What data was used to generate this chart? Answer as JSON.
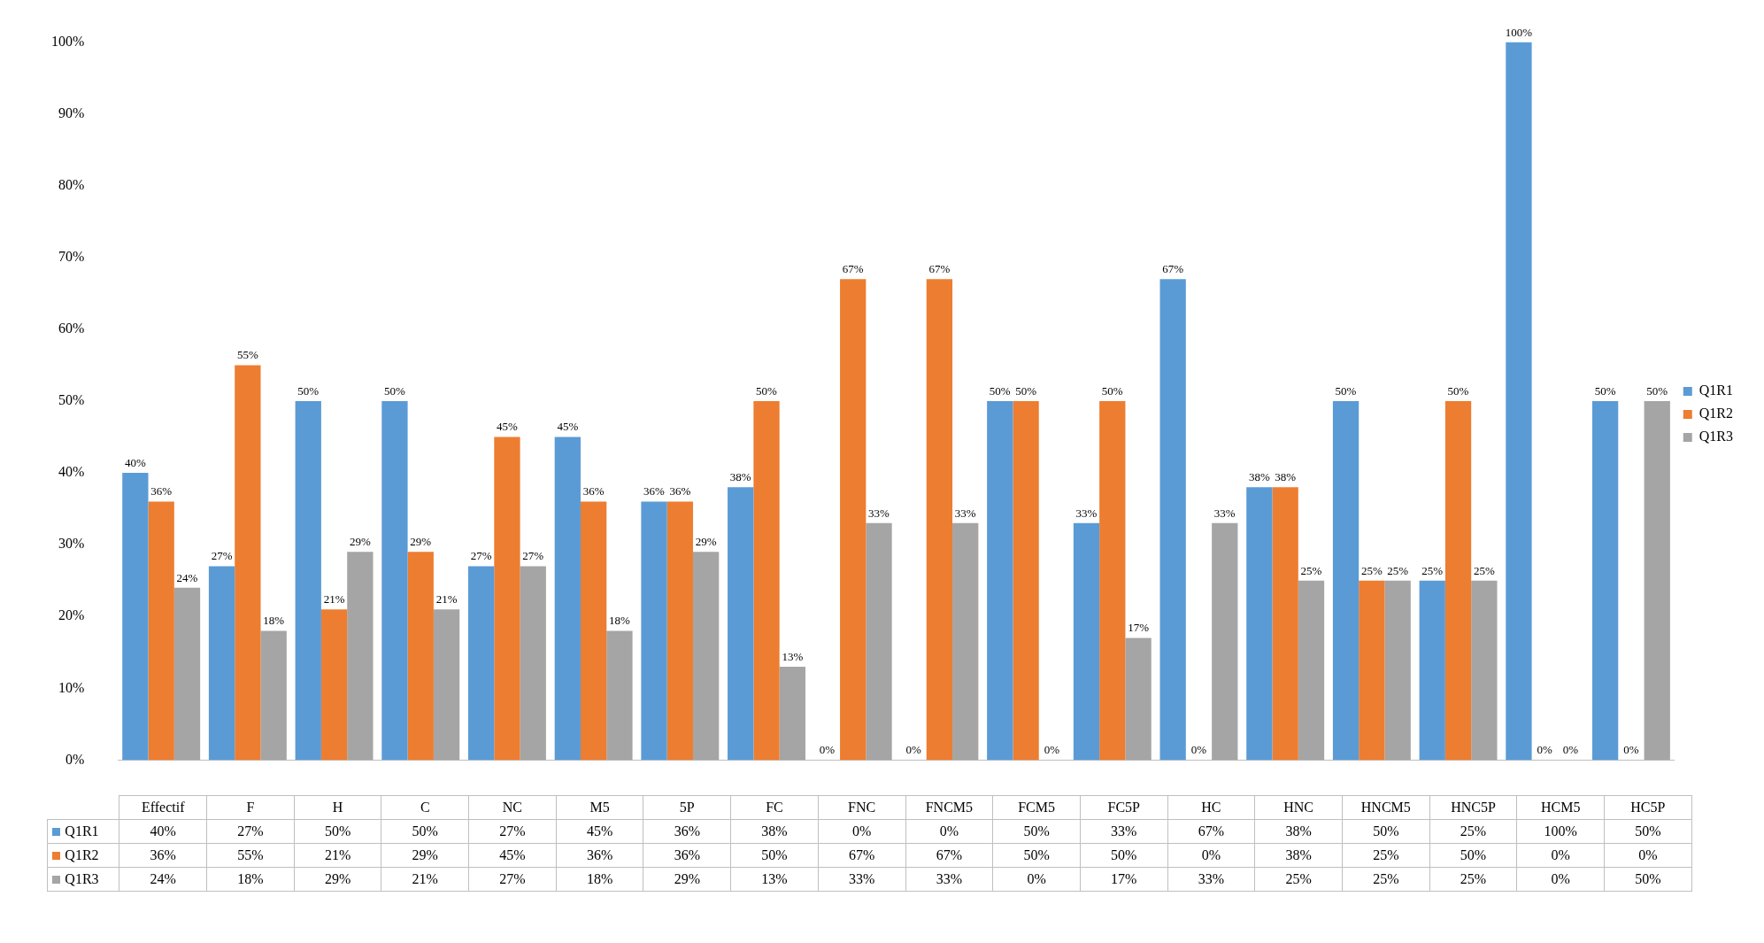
{
  "chart_data": {
    "type": "bar",
    "categories": [
      "Effectif",
      "F",
      "H",
      "C",
      "NC",
      "M5",
      "5P",
      "FC",
      "FNC",
      "FNCM5",
      "FCM5",
      "FC5P",
      "HC",
      "HNC",
      "HNCM5",
      "HNC5P",
      "HCM5",
      "HC5P"
    ],
    "series": [
      {
        "name": "Q1R1",
        "color": "#5b9bd5",
        "values": [
          40,
          27,
          50,
          50,
          27,
          45,
          36,
          38,
          0,
          0,
          50,
          33,
          67,
          38,
          50,
          25,
          100,
          50
        ],
        "value_labels": [
          "40%",
          "27%",
          "50%",
          "50%",
          "27%",
          "45%",
          "36%",
          "38%",
          "0%",
          "0%",
          "50%",
          "33%",
          "67%",
          "38%",
          "50%",
          "25%",
          "100%",
          "50%"
        ]
      },
      {
        "name": "Q1R2",
        "color": "#ed7d31",
        "values": [
          36,
          55,
          21,
          29,
          45,
          36,
          36,
          50,
          67,
          67,
          50,
          50,
          0,
          38,
          25,
          50,
          0,
          0
        ],
        "value_labels": [
          "36%",
          "55%",
          "21%",
          "29%",
          "45%",
          "36%",
          "36%",
          "50%",
          "67%",
          "67%",
          "50%",
          "50%",
          "0%",
          "38%",
          "25%",
          "50%",
          "0%",
          "0%"
        ]
      },
      {
        "name": "Q1R3",
        "color": "#a5a5a5",
        "values": [
          24,
          18,
          29,
          21,
          27,
          18,
          29,
          13,
          33,
          33,
          0,
          17,
          33,
          25,
          25,
          25,
          0,
          50
        ],
        "value_labels": [
          "24%",
          "18%",
          "29%",
          "21%",
          "27%",
          "18%",
          "29%",
          "13%",
          "33%",
          "33%",
          "0%",
          "17%",
          "33%",
          "25%",
          "25%",
          "25%",
          "0%",
          "50%"
        ]
      }
    ],
    "ylim": [
      0,
      100
    ],
    "yticks": [
      {
        "value": 0,
        "label": "0%"
      },
      {
        "value": 10,
        "label": "10%"
      },
      {
        "value": 20,
        "label": "20%"
      },
      {
        "value": 30,
        "label": "30%"
      },
      {
        "value": 40,
        "label": "40%"
      },
      {
        "value": 50,
        "label": "50%"
      },
      {
        "value": 60,
        "label": "60%"
      },
      {
        "value": 70,
        "label": "70%"
      },
      {
        "value": 80,
        "label": "80%"
      },
      {
        "value": 90,
        "label": "90%"
      },
      {
        "value": 100,
        "label": "100%"
      }
    ],
    "grid": false,
    "legend": "right"
  }
}
